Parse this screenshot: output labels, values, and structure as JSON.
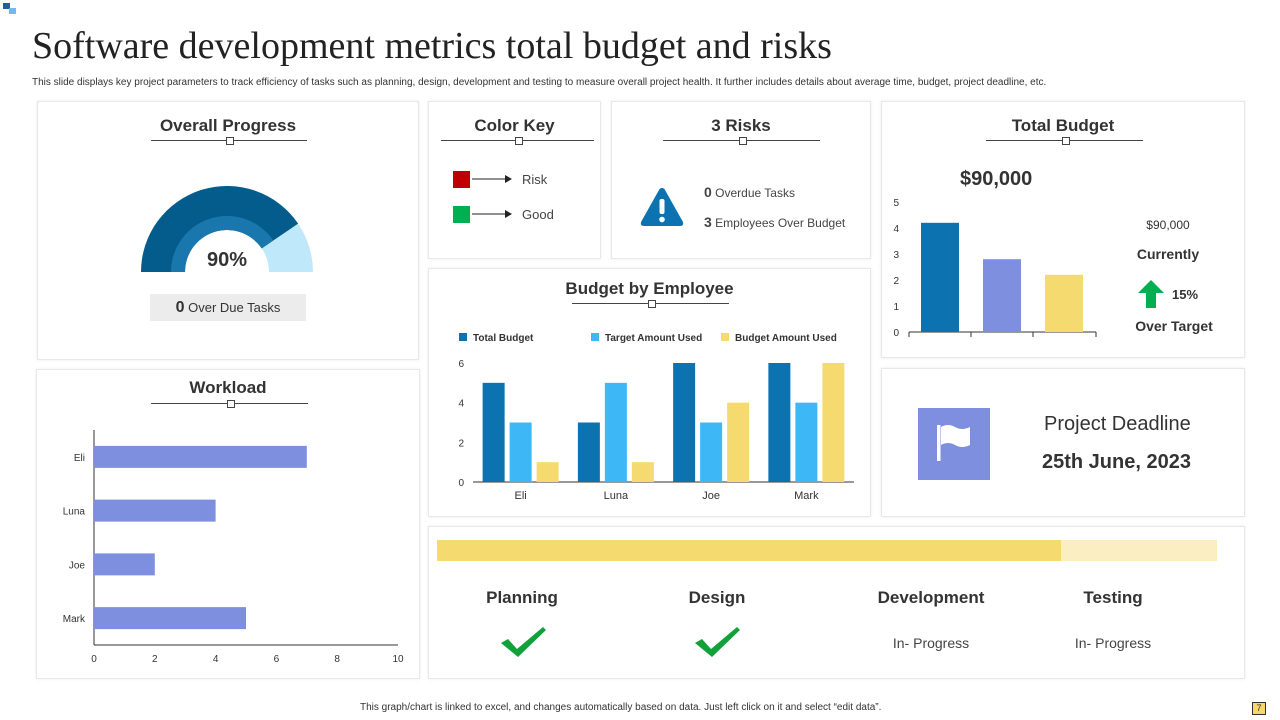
{
  "title": "Software development metrics total budget and risks",
  "description": "This slide displays key project parameters to track efficiency of tasks such as planning, design, development and testing to measure overall project health.  It  further includes details about average time,  budget, project deadline,  etc.",
  "footer": "This graph/chart is linked to excel, and changes automatically based on data. Just left click on it and select “edit data”.",
  "page_number": "7",
  "colors": {
    "dark_blue": "#0c72b0",
    "light_blue": "#3db7f5",
    "yellow": "#f5da70",
    "periwinkle": "#7f8fe0",
    "red": "#c00000",
    "green": "#00b050",
    "gauge_navy": "#045c8c",
    "gauge_light": "#bfe9fb"
  },
  "overall_progress": {
    "title": "Overall Progress",
    "percent_label": "90%",
    "overdue_count": "0",
    "overdue_label": "Over  Due Tasks"
  },
  "color_key": {
    "title": "Color Key",
    "items": [
      {
        "label": "Risk",
        "color": "#c00000"
      },
      {
        "label": "Good",
        "color": "#00b050"
      }
    ]
  },
  "risks": {
    "title": "3 Risks",
    "icon": "warning-icon",
    "lines": [
      {
        "count": "0",
        "label": "Overdue Tasks"
      },
      {
        "count": "3",
        "label": "Employees Over Budget"
      }
    ]
  },
  "total_budget": {
    "title": "Total Budget",
    "amount": "$90,000",
    "side_amount": "$90,000",
    "currently_label": "Currently",
    "change_percent": "15%",
    "over_target_label": "Over Target"
  },
  "budget_by_employee_title": "Budget by Employee",
  "workload_title": "Workload",
  "project_deadline": {
    "label": "Project Deadline",
    "date": "25th June, 2023",
    "icon": "flag-icon"
  },
  "stages": {
    "overall_fill_percent": 80,
    "items": [
      {
        "name": "Planning",
        "status": "",
        "done": true
      },
      {
        "name": "Design",
        "status": "",
        "done": true
      },
      {
        "name": "Development",
        "status": "In- Progress",
        "done": false
      },
      {
        "name": "Testing",
        "status": "In- Progress",
        "done": false
      }
    ]
  },
  "chart_data": [
    {
      "type": "gauge",
      "title": "Overall Progress",
      "value": 90,
      "max": 100,
      "label": "90%"
    },
    {
      "type": "bar",
      "title": "Total Budget",
      "categories": [
        "",
        "",
        ""
      ],
      "values": [
        4.2,
        2.8,
        2.2
      ],
      "colors": [
        "#0c72b0",
        "#7f8fe0",
        "#f5da70"
      ],
      "ylim": [
        0,
        5
      ],
      "yticks": [
        0,
        1,
        2,
        3,
        4,
        5
      ]
    },
    {
      "type": "bar",
      "title": "Budget by Employee",
      "categories": [
        "Eli",
        "Luna",
        "Joe",
        "Mark"
      ],
      "series": [
        {
          "name": "Total Budget",
          "color": "#0c72b0",
          "values": [
            5,
            3,
            6,
            6
          ]
        },
        {
          "name": "Target Amount Used",
          "color": "#3db7f5",
          "values": [
            3,
            5,
            3,
            4
          ]
        },
        {
          "name": "Budget Amount Used",
          "color": "#f5da70",
          "values": [
            1,
            1,
            4,
            6
          ]
        }
      ],
      "ylim": [
        0,
        6
      ],
      "yticks": [
        0,
        2,
        4,
        6
      ],
      "legend": "top"
    },
    {
      "type": "bar",
      "orientation": "horizontal",
      "title": "Workload",
      "categories": [
        "Eli",
        "Luna",
        "Joe",
        "Mark"
      ],
      "values": [
        7,
        4,
        2,
        5
      ],
      "color": "#7f8fe0",
      "xlim": [
        0,
        10
      ],
      "xticks": [
        0,
        2,
        4,
        6,
        8,
        10
      ]
    }
  ]
}
